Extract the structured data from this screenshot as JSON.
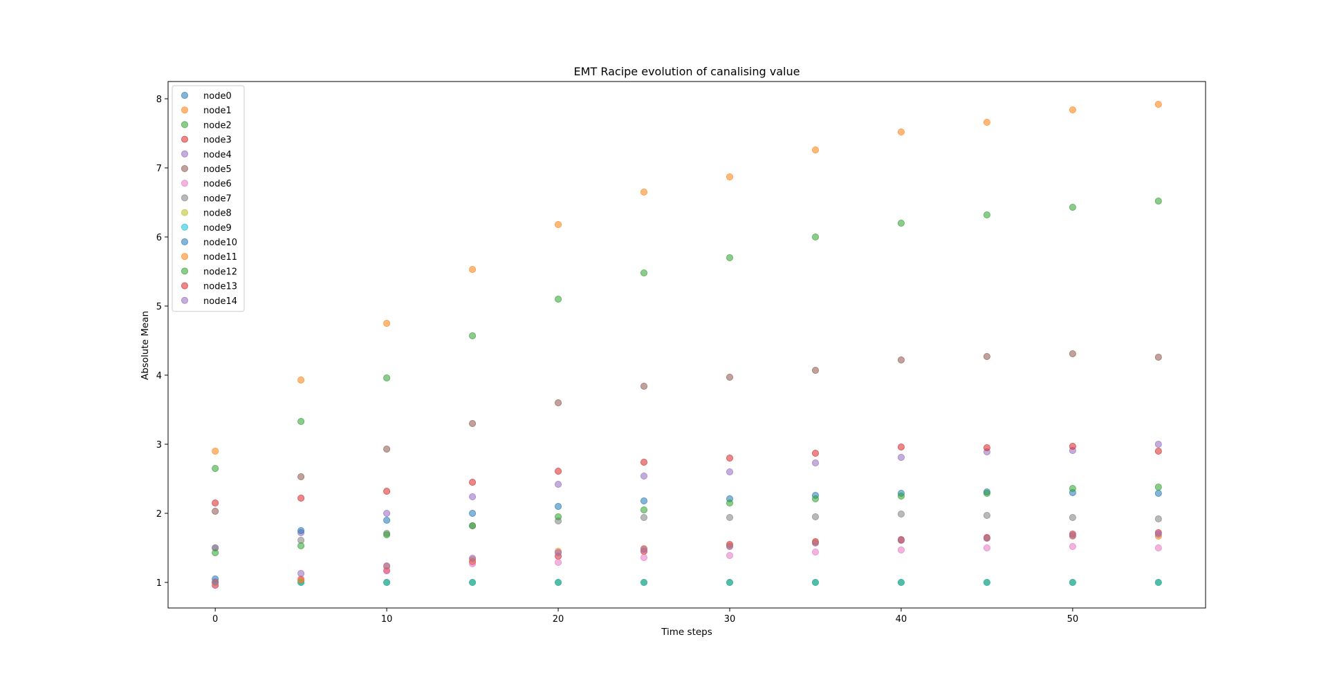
{
  "chart_data": {
    "type": "scatter",
    "title": "EMT Racipe evolution of canalising value",
    "xlabel": "Time steps",
    "ylabel": "Absolute Mean",
    "xlim": [
      -2.75,
      57.75
    ],
    "ylim": [
      0.63,
      8.25
    ],
    "xticks": [
      0,
      10,
      20,
      30,
      40,
      50
    ],
    "yticks": [
      1,
      2,
      3,
      4,
      5,
      6,
      7,
      8
    ],
    "grid": false,
    "legend_position": "top-left",
    "x": [
      0,
      5,
      10,
      15,
      20,
      25,
      30,
      35,
      40,
      45,
      50,
      55
    ],
    "series": [
      {
        "name": "node0",
        "color": "#1f77b4",
        "values": [
          1.0,
          1.0,
          1.0,
          1.0,
          1.0,
          1.0,
          1.0,
          1.0,
          1.0,
          1.0,
          1.0,
          1.0
        ]
      },
      {
        "name": "node1",
        "color": "#ff7f0e",
        "values": [
          2.9,
          3.93,
          4.75,
          5.53,
          6.18,
          6.65,
          6.87,
          7.26,
          7.52,
          7.66,
          7.84,
          7.92
        ]
      },
      {
        "name": "node2",
        "color": "#2ca02c",
        "values": [
          2.65,
          3.33,
          3.96,
          4.57,
          5.1,
          5.48,
          5.7,
          6.0,
          6.2,
          6.32,
          6.43,
          6.52
        ]
      },
      {
        "name": "node3",
        "color": "#d62728",
        "values": [
          0.96,
          1.03,
          1.17,
          1.3,
          1.38,
          1.45,
          1.55,
          1.59,
          1.62,
          1.65,
          1.7,
          1.72
        ]
      },
      {
        "name": "node4",
        "color": "#9467bd",
        "values": [
          1.5,
          1.72,
          2.0,
          2.24,
          2.42,
          2.54,
          2.6,
          2.73,
          2.81,
          2.89,
          2.91,
          3.0
        ]
      },
      {
        "name": "node5",
        "color": "#8c564b",
        "values": [
          2.03,
          2.53,
          2.93,
          3.3,
          3.6,
          3.84,
          3.97,
          4.07,
          4.22,
          4.27,
          4.31,
          4.26
        ]
      },
      {
        "name": "node6",
        "color": "#e377c2",
        "values": [
          0.98,
          1.05,
          1.17,
          1.27,
          1.29,
          1.36,
          1.39,
          1.44,
          1.47,
          1.5,
          1.52,
          1.5
        ]
      },
      {
        "name": "node7",
        "color": "#7f7f7f",
        "values": [
          1.5,
          1.61,
          1.71,
          1.82,
          1.89,
          1.94,
          1.94,
          1.95,
          1.99,
          1.97,
          1.94,
          1.92
        ]
      },
      {
        "name": "node8",
        "color": "#bcbd22",
        "values": [
          1.0,
          1.0,
          1.0,
          1.0,
          1.0,
          1.0,
          1.0,
          1.0,
          1.0,
          1.0,
          1.0,
          1.0
        ]
      },
      {
        "name": "node9",
        "color": "#17becf",
        "values": [
          1.0,
          1.0,
          1.0,
          1.0,
          1.0,
          1.0,
          1.0,
          1.0,
          1.0,
          1.0,
          1.0,
          1.0
        ]
      },
      {
        "name": "node10",
        "color": "#1f77b4",
        "values": [
          1.05,
          1.75,
          1.9,
          2.0,
          2.1,
          2.18,
          2.21,
          2.26,
          2.29,
          2.31,
          2.3,
          2.29
        ]
      },
      {
        "name": "node11",
        "color": "#ff7f0e",
        "values": [
          1.0,
          1.04,
          1.23,
          1.33,
          1.45,
          1.49,
          1.53,
          1.58,
          1.61,
          1.64,
          1.67,
          1.67
        ]
      },
      {
        "name": "node12",
        "color": "#2ca02c",
        "values": [
          1.43,
          1.53,
          1.69,
          1.82,
          1.95,
          2.05,
          2.15,
          2.21,
          2.25,
          2.29,
          2.36,
          2.38
        ]
      },
      {
        "name": "node13",
        "color": "#d62728",
        "values": [
          2.15,
          2.22,
          2.32,
          2.45,
          2.61,
          2.74,
          2.8,
          2.87,
          2.96,
          2.95,
          2.97,
          2.9
        ]
      },
      {
        "name": "node14",
        "color": "#9467bd",
        "values": [
          1.01,
          1.13,
          1.24,
          1.35,
          1.43,
          1.48,
          1.52,
          1.57,
          1.61,
          1.64,
          1.68,
          1.7
        ]
      }
    ]
  }
}
